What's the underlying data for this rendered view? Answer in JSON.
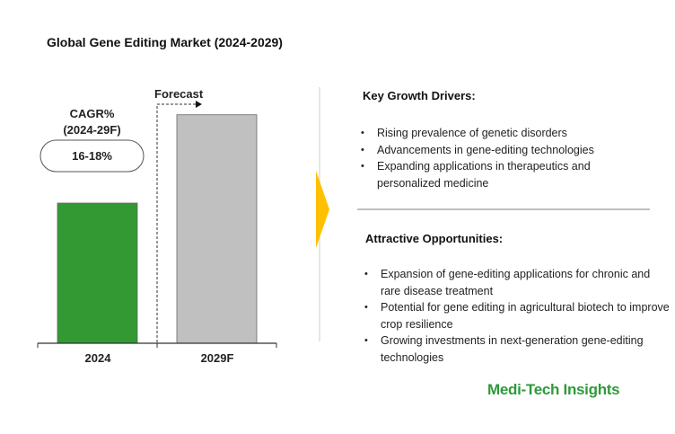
{
  "chart_data": {
    "type": "bar",
    "title": "Global Gene Editing Market (2024-2029)",
    "categories": [
      "2024",
      "2029F"
    ],
    "values": [
      1.0,
      1.63
    ],
    "value_note": "relative bar heights; no value axis shown",
    "colors": [
      "#339933",
      "#c0c0c0"
    ],
    "forecast_label": "Forecast",
    "cagr_label": [
      "CAGR%",
      "(2024-29F)"
    ],
    "cagr_value": "16-18%"
  },
  "drivers": {
    "heading": "Key Growth Drivers:",
    "items": [
      "Rising prevalence of genetic disorders",
      "Advancements in gene-editing technologies",
      "Expanding applications in therapeutics and personalized medicine"
    ]
  },
  "opportunities": {
    "heading": "Attractive Opportunities:",
    "items": [
      "Expansion of gene-editing applications for chronic and rare disease treatment",
      "Potential for gene editing in agricultural biotech to improve crop resilience",
      "Growing investments in next-generation gene-editing technologies"
    ]
  },
  "logo": "Medi-Tech Insights",
  "accent": "#ffc000"
}
